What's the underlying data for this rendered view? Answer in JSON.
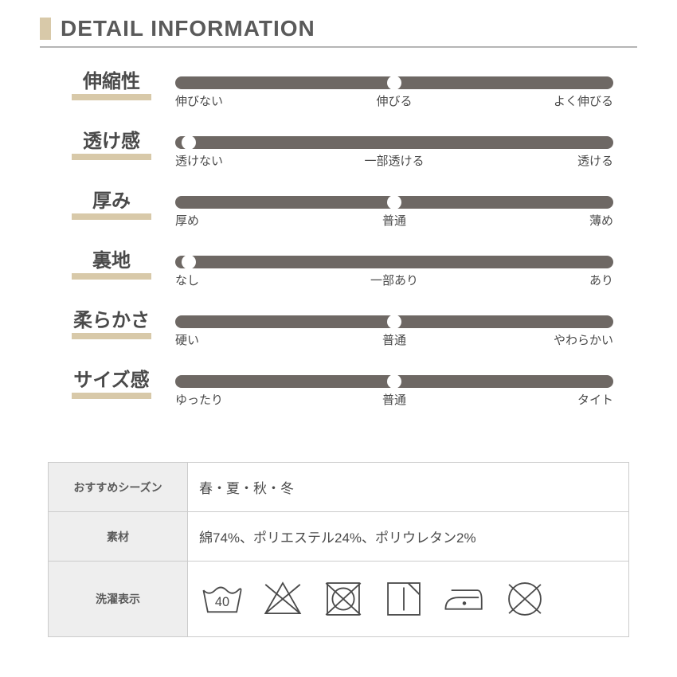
{
  "header": {
    "title": "DETAIL INFORMATION"
  },
  "colors": {
    "accent": "#d8c9a9",
    "track": "#6e6864",
    "knob": "#ffffff",
    "text": "#4a4a4a",
    "panel_bg": "#eeeeee",
    "border": "#cccccc"
  },
  "sliders": [
    {
      "label": "伸縮性",
      "scale": [
        "伸びない",
        "伸びる",
        "よく伸びる"
      ],
      "value_percent": 50
    },
    {
      "label": "透け感",
      "scale": [
        "透けない",
        "一部透ける",
        "透ける"
      ],
      "value_percent": 3
    },
    {
      "label": "厚み",
      "scale": [
        "厚め",
        "普通",
        "薄め"
      ],
      "value_percent": 50
    },
    {
      "label": "裏地",
      "scale": [
        "なし",
        "一部あり",
        "あり"
      ],
      "value_percent": 3
    },
    {
      "label": "柔らかさ",
      "scale": [
        "硬い",
        "普通",
        "やわらかい"
      ],
      "value_percent": 50
    },
    {
      "label": "サイズ感",
      "scale": [
        "ゆったり",
        "普通",
        "タイト"
      ],
      "value_percent": 50
    }
  ],
  "info": {
    "rows": [
      {
        "key": "おすすめシーズン",
        "value": "春・夏・秋・冬"
      },
      {
        "key": "素材",
        "value": "綿74%、ポリエステル24%、ポリウレタン2%"
      },
      {
        "key": "洗濯表示",
        "value_type": "care_icons"
      }
    ]
  },
  "care_icons": [
    {
      "name": "wash-40",
      "label": "40"
    },
    {
      "name": "no-bleach"
    },
    {
      "name": "no-tumble-dry"
    },
    {
      "name": "dry-flat-shade"
    },
    {
      "name": "iron-low"
    },
    {
      "name": "no-dryclean"
    }
  ]
}
